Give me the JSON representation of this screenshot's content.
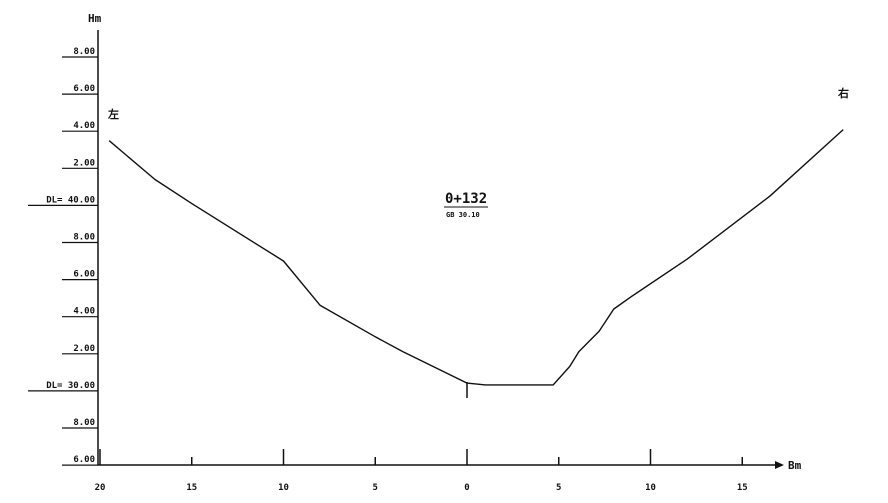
{
  "diagram": {
    "y_axis_unit": "Hm",
    "x_axis_unit": "Bm",
    "left_bank_label": "左",
    "right_bank_label": "右",
    "station": "0+132",
    "station_sub": "GB 30.10",
    "y_tick_labels": [
      "8.00",
      "6.00",
      "4.00",
      "2.00",
      "DL= 40.00",
      "8.00",
      "6.00",
      "4.00",
      "2.00",
      "DL= 30.00",
      "8.00",
      "6.00"
    ],
    "x_tick_labels": [
      "20",
      "15",
      "10",
      "5",
      "0",
      "5",
      "10",
      "15"
    ],
    "profile_points": [
      [
        -19.5,
        43.8
      ],
      [
        -17.0,
        41.7
      ],
      [
        -15.0,
        40.4
      ],
      [
        -10.0,
        37.3
      ],
      [
        -8.0,
        34.9
      ],
      [
        -5.0,
        33.2
      ],
      [
        -3.5,
        32.4
      ],
      [
        0.0,
        30.7
      ],
      [
        1.0,
        30.6
      ],
      [
        4.7,
        30.6
      ],
      [
        5.6,
        31.6
      ],
      [
        6.1,
        32.4
      ],
      [
        7.2,
        33.5
      ],
      [
        8.0,
        34.7
      ],
      [
        9.0,
        35.4
      ],
      [
        12.0,
        37.4
      ],
      [
        16.5,
        40.8
      ],
      [
        20.5,
        44.4
      ]
    ]
  }
}
